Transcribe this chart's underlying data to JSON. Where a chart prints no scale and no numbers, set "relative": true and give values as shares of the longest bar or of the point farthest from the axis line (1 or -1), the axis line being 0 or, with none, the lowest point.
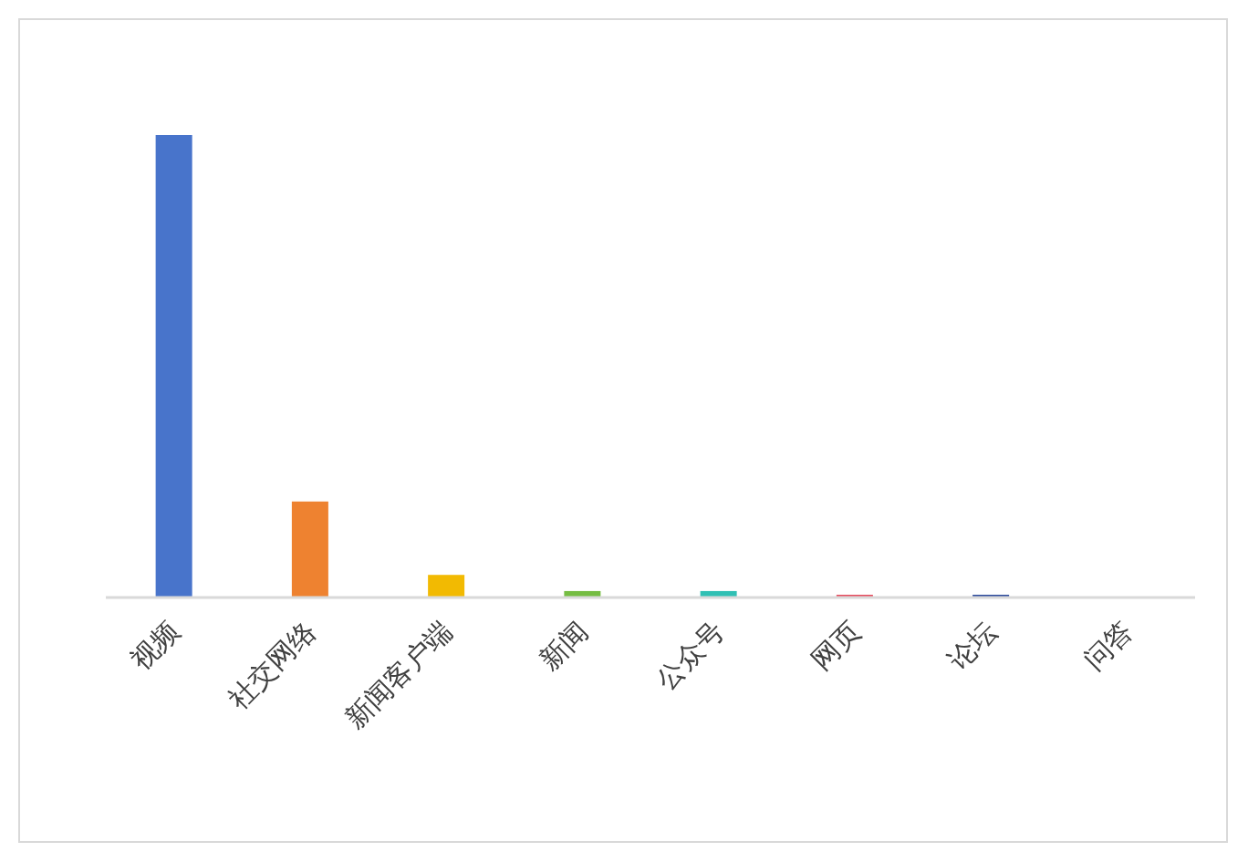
{
  "chart_data": {
    "type": "bar",
    "relative": true,
    "categories": [
      "视频",
      "社交网络",
      "新闻客户端",
      "新闻",
      "公众号",
      "网页",
      "论坛",
      "问答"
    ],
    "values": [
      1,
      0.206,
      0.047,
      0.012,
      0.012,
      0.004,
      0.004,
      0
    ],
    "colors": [
      "#4874cb",
      "#ee8230",
      "#f2ba02",
      "#75bd42",
      "#30c0b4",
      "#e54c5e",
      "#2d4b9b",
      "#a05fb4"
    ],
    "orientation": "vertical"
  }
}
